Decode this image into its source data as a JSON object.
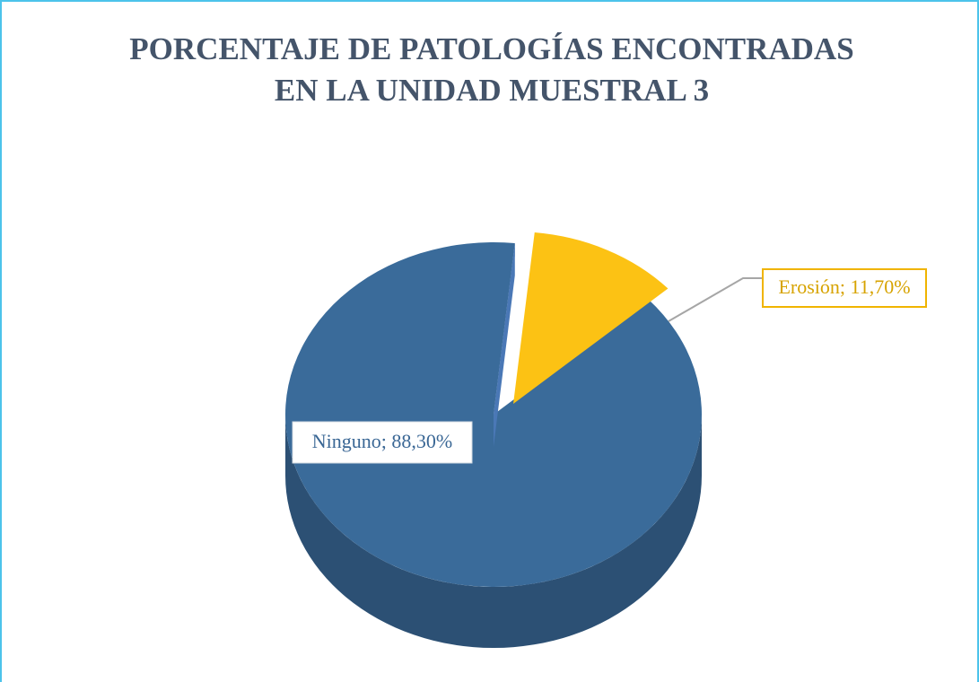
{
  "chart_data": {
    "type": "pie",
    "title": [
      "PORCENTAJE DE PATOLOGÍAS ENCONTRADAS",
      "EN LA UNIDAD MUESTRAL 3"
    ],
    "categories": [
      "Ninguno",
      "Erosión"
    ],
    "values": [
      88.3,
      11.7
    ],
    "value_labels": [
      "Ninguno; 88,30%",
      "Erosión; 11,70%"
    ],
    "colors": [
      "#3a6b9a",
      "#fcc214"
    ]
  }
}
